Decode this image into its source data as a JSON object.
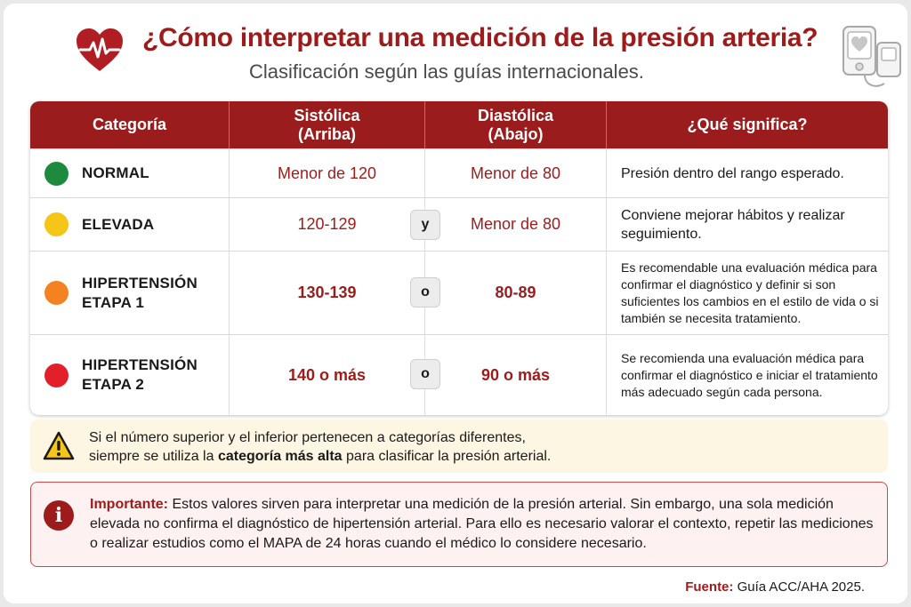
{
  "header": {
    "title": "¿Cómo interpretar una medición de la presión arteria?",
    "subtitle": "Clasificación según las guías internacionales.",
    "heart_icon": "heart-pulse-icon",
    "device_icon": "blood-pressure-monitor-icon"
  },
  "table": {
    "columns": [
      {
        "line1": "Categoría",
        "line2": ""
      },
      {
        "line1": "Sistólica",
        "line2": "(Arriba)"
      },
      {
        "line1": "Diastólica",
        "line2": "(Abajo)"
      },
      {
        "line1": "¿Qué significa?",
        "line2": ""
      }
    ],
    "rows": [
      {
        "category_line1": "NORMAL",
        "category_line2": "",
        "color": "#1e8a3e",
        "systolic": "Menor de 120",
        "connector": "",
        "diastolic": "Menor de 80",
        "meaning": "Presión dentro del rango esperado."
      },
      {
        "category_line1": "ELEVADA",
        "category_line2": "",
        "color": "#f5c518",
        "systolic": "120-129",
        "connector": "y",
        "diastolic": "Menor de 80",
        "meaning": "Conviene mejorar hábitos y realizar seguimiento."
      },
      {
        "category_line1": "HIPERTENSIÓN",
        "category_line2": "ETAPA 1",
        "color": "#f58220",
        "systolic": "130-139",
        "connector": "o",
        "diastolic": "80-89",
        "meaning": "Es recomendable una evaluación médica para confirmar el diagnóstico y definir si son suficientes los cambios en el estilo de vida o si también se necesita tratamiento."
      },
      {
        "category_line1": "HIPERTENSIÓN",
        "category_line2": "ETAPA 2",
        "color": "#e3202a",
        "systolic": "140 o más",
        "connector": "o",
        "diastolic": "90 o más",
        "meaning": "Se recomienda una evaluación médica para confirmar el diagnóstico e iniciar el tratamiento más adecuado según cada persona."
      }
    ]
  },
  "warning": {
    "icon": "warning-triangle-icon",
    "line1": "Si el número superior y el inferior pertenecen a categorías diferentes,",
    "line2_before": "siempre se utiliza la ",
    "line2_bold": "categoría más alta",
    "line2_after": " para clasificar la presión arterial."
  },
  "important": {
    "icon": "info-icon",
    "label": "Importante:",
    "text": " Estos valores sirven para interpretar una medición de la presión arterial. Sin embargo, una sola medición elevada no confirma el diagnóstico de hipertensión arterial. Para ello es necesario valorar el contexto, repetir las mediciones o realizar estudios como el MAPA de 24 horas cuando el médico lo considere necesario."
  },
  "source": {
    "label": "Fuente:",
    "text": " Guía ACC/AHA 2025."
  },
  "colors": {
    "brand_red": "#9e1b1b",
    "header_bg": "#9a1c1c",
    "warning_bg": "#fdf6e3",
    "important_bg": "#fdf1f1"
  }
}
